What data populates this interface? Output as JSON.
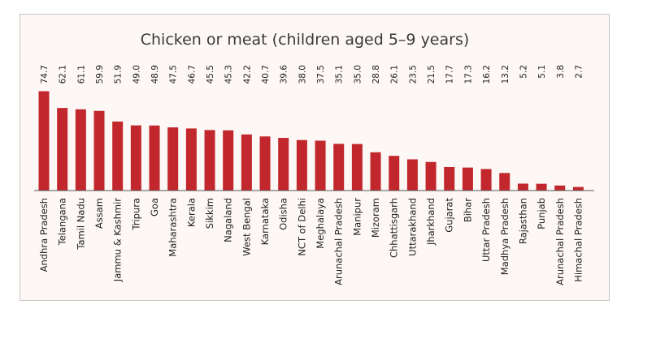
{
  "chart_data": {
    "type": "bar",
    "title": "Chicken or meat (children aged 5–9 years)",
    "xlabel": "",
    "ylabel": "",
    "ylim": [
      0,
      80
    ],
    "bar_color": "#c1272d",
    "categories": [
      "Andhra Pradesh",
      "Telangana",
      "Tamil Nadu",
      "Assam",
      "Jammu & Kashmir",
      "Tripura",
      "Goa",
      "Maharashtra",
      "Kerala",
      "Sikkim",
      "Nagaland",
      "West Bengal",
      "Karnataka",
      "Odisha",
      "NCT of Delhi",
      "Meghalaya",
      "Arunachal Pradesh",
      "Manipur",
      "Mizoram",
      "Chhattisgarh",
      "Uttarakhand",
      "Jharkhand",
      "Gujarat",
      "Bihar",
      "Uttar Pradesh",
      "Madhya Pradesh",
      "Rajasthan",
      "Punjab",
      "Arunachal Pradesh",
      "Himachal Pradesh"
    ],
    "values": [
      74.7,
      62.1,
      61.1,
      59.9,
      51.9,
      49.0,
      48.9,
      47.5,
      46.7,
      45.5,
      45.3,
      42.2,
      40.7,
      39.6,
      38.0,
      37.5,
      35.1,
      35.0,
      28.8,
      26.1,
      23.5,
      21.5,
      17.7,
      17.3,
      16.2,
      13.2,
      5.2,
      5.1,
      3.8,
      2.7
    ],
    "value_labels": [
      "74.7",
      "62.1",
      "61.1",
      "59.9",
      "51.9",
      "49.0",
      "48.9",
      "47.5",
      "46.7",
      "45.5",
      "45.3",
      "42.2",
      "40.7",
      "39.6",
      "38.0",
      "37.5",
      "35.1",
      "35.0",
      "28.8",
      "26.1",
      "23.5",
      "21.5",
      "17.7",
      "17.3",
      "16.2",
      "13.2",
      "5.2",
      "5.1",
      "3.8",
      "2.7"
    ]
  }
}
